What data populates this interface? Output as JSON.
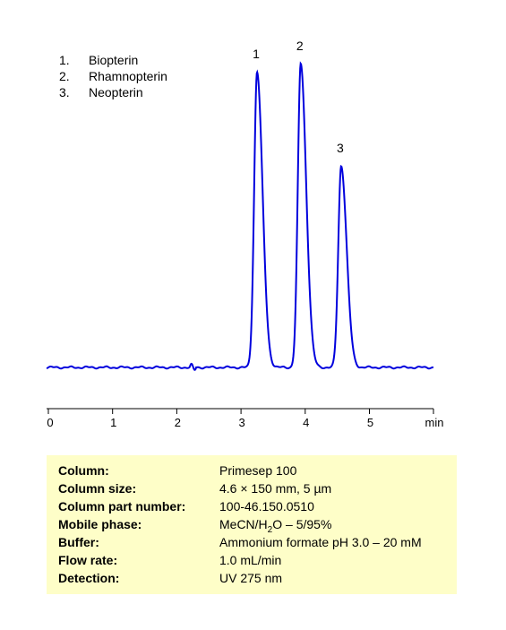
{
  "legend": [
    {
      "num": "1.",
      "name": "Biopterin"
    },
    {
      "num": "2.",
      "name": "Rhamnopterin"
    },
    {
      "num": "3.",
      "name": "Neopterin"
    }
  ],
  "chart_data": {
    "type": "line",
    "xlabel": "min",
    "xlim": [
      0,
      6
    ],
    "x_ticks": [
      "0",
      "1",
      "2",
      "3",
      "4",
      "5"
    ],
    "color": "#0000dd",
    "peaks": [
      {
        "label": "1",
        "rt": 3.25,
        "height": 330
      },
      {
        "label": "2",
        "rt": 3.93,
        "height": 339
      },
      {
        "label": "3",
        "rt": 4.56,
        "height": 225
      }
    ]
  },
  "conditions": [
    {
      "label": "Column:",
      "value": "Primesep  100"
    },
    {
      "label": "Column size:",
      "value": "4.6 × 150 mm, 5 µm"
    },
    {
      "label": "Column part number:",
      "value": "100-46.150.0510"
    },
    {
      "label": "Mobile phase:",
      "value_parts": [
        "MeCN/H",
        "2",
        "O – 5/95%"
      ]
    },
    {
      "label": "Buffer:",
      "value": "Ammonium formate pH 3.0 – 20 mM"
    },
    {
      "label": "Flow rate:",
      "value": "1.0 mL/min"
    },
    {
      "label": "Detection:",
      "value": "UV 275  nm"
    }
  ]
}
